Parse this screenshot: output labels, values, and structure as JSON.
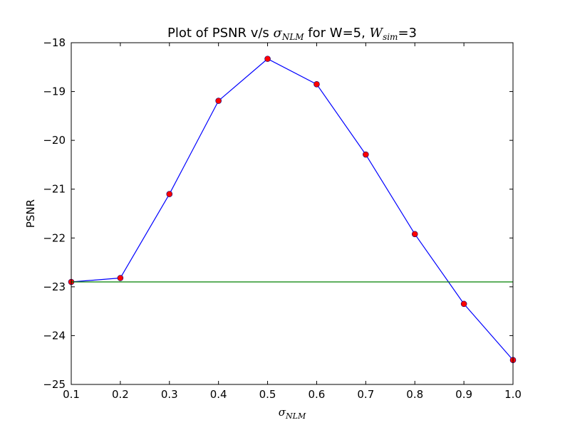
{
  "chart_data": {
    "type": "line",
    "title": {
      "prefix": "Plot of PSNR v/s ",
      "sigma": "σ",
      "sigma_sub": "NLM",
      "middle": " for W=5, ",
      "w": "W",
      "w_sub": "sim",
      "suffix": "=3"
    },
    "xlabel": {
      "symbol": "σ",
      "sub": "NLM"
    },
    "ylabel": "PSNR",
    "xlim": [
      0.1,
      1.0
    ],
    "ylim": [
      -25,
      -18
    ],
    "x_ticks": [
      0.1,
      0.2,
      0.3,
      0.4,
      0.5,
      0.6,
      0.7,
      0.8,
      0.9,
      1.0
    ],
    "x_tick_labels": [
      "0.1",
      "0.2",
      "0.3",
      "0.4",
      "0.5",
      "0.6",
      "0.7",
      "0.8",
      "0.9",
      "1.0"
    ],
    "y_ticks": [
      -25,
      -24,
      -23,
      -22,
      -21,
      -20,
      -19,
      -18
    ],
    "y_tick_labels": [
      "−25",
      "−24",
      "−23",
      "−22",
      "−21",
      "−20",
      "−19",
      "−18"
    ],
    "grid": false,
    "series": [
      {
        "kind": "line-with-markers",
        "color": "#0000ff",
        "marker_color": "#ff0000",
        "x": [
          0.1,
          0.2,
          0.3,
          0.4,
          0.5,
          0.6,
          0.7,
          0.8,
          0.9,
          1.0
        ],
        "y": [
          -22.9,
          -22.82,
          -21.1,
          -19.19,
          -18.33,
          -18.85,
          -20.29,
          -21.92,
          -23.35,
          -24.5
        ]
      },
      {
        "kind": "horizontal-line",
        "color": "#008000",
        "y": -22.9
      }
    ]
  }
}
